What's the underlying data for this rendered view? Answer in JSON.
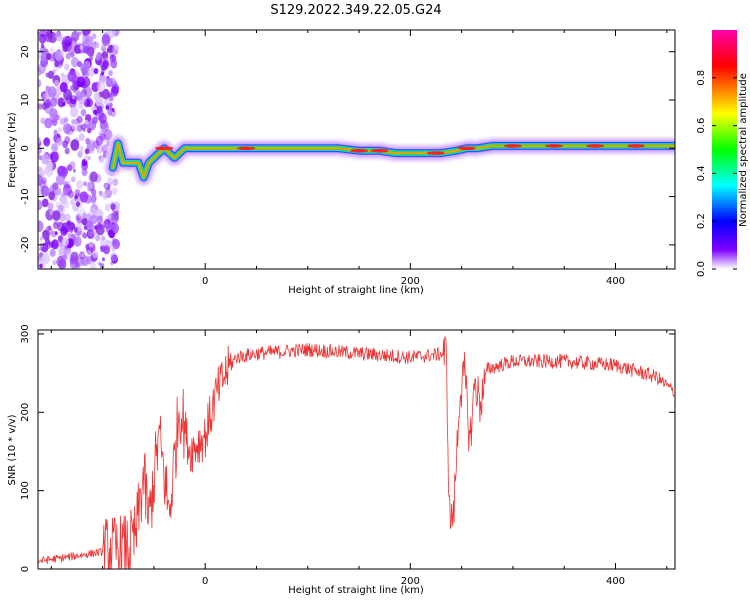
{
  "title": "S129.2022.349.22.05.G24",
  "chart_data": [
    {
      "type": "heatmap",
      "xlabel": "Height of straight line (km)",
      "ylabel": "Frequency (Hz)",
      "xlim": [
        -163,
        458
      ],
      "ylim": [
        -25,
        24.5
      ],
      "xticks": [
        0,
        200,
        400
      ],
      "yticks": [
        -20,
        -10,
        0,
        10,
        20
      ],
      "ridge": {
        "x": [
          -90,
          -85,
          -80,
          -75,
          -70,
          -65,
          -60,
          -55,
          -50,
          -45,
          -40,
          -35,
          -30,
          -25,
          -20,
          0,
          50,
          100,
          130,
          150,
          170,
          185,
          200,
          215,
          230,
          245,
          255,
          265,
          280,
          300,
          400,
          458
        ],
        "freq": [
          -4,
          1,
          -3,
          -3,
          -3,
          -3,
          -6,
          -3,
          -2,
          -1,
          0,
          -1,
          -2,
          -1,
          0,
          0,
          0,
          0,
          0,
          -0.5,
          -0.5,
          -1,
          -1,
          -1,
          -1,
          -0.5,
          0,
          0,
          0.5,
          0.5,
          0.5,
          0.5
        ]
      },
      "noise_region_x": [
        -163,
        -90
      ],
      "colorbar": {
        "label": "Normalized spectral amplitude",
        "ticks": [
          0.0,
          0.2,
          0.4,
          0.6,
          0.8
        ],
        "range": [
          0,
          1
        ],
        "colors": [
          "#ffffff",
          "#7f00ff",
          "#0000ff",
          "#00ffff",
          "#00ff00",
          "#ffff00",
          "#ff0000",
          "#ff00aa"
        ]
      }
    },
    {
      "type": "line",
      "xlabel": "Height of straight line (km)",
      "ylabel": "SNR (10 * v/v)",
      "xlim": [
        -163,
        458
      ],
      "ylim": [
        0,
        305
      ],
      "xticks": [
        0,
        200,
        400
      ],
      "yticks": [
        0,
        100,
        200,
        300
      ],
      "color": "#ee3333",
      "series": [
        {
          "x": [
            -163,
            -140,
            -120,
            -100,
            -90,
            -75,
            -68,
            -60,
            -55,
            -45,
            -35,
            -25,
            -15,
            0,
            10,
            20,
            30,
            50,
            100,
            150,
            200,
            235,
            238,
            242,
            248,
            253,
            258,
            263,
            268,
            275,
            300,
            350,
            400,
            440,
            458
          ],
          "y": [
            10,
            14,
            18,
            22,
            24,
            26,
            40,
            120,
            60,
            170,
            70,
            210,
            150,
            170,
            220,
            250,
            270,
            275,
            280,
            275,
            270,
            275,
            70,
            65,
            220,
            250,
            160,
            240,
            210,
            255,
            265,
            265,
            260,
            245,
            225
          ]
        }
      ]
    }
  ]
}
